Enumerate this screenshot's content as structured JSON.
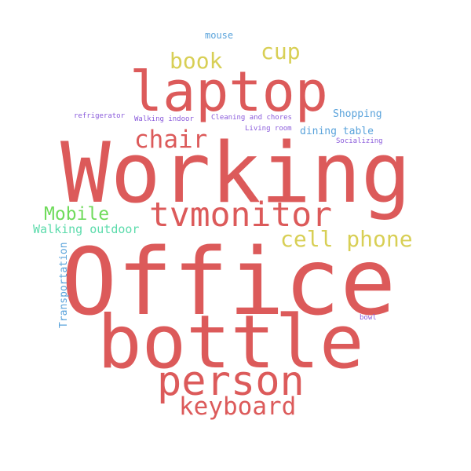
{
  "colors": {
    "red": "#dc5a5a",
    "yellow": "#d8cf55",
    "green": "#6fdb5b",
    "teal": "#5bdbab",
    "blue": "#5aa3db",
    "purple": "#8a5bdb",
    "background": "#ffffff"
  },
  "words": {
    "office": "Office",
    "working": "Working",
    "bottle": "bottle",
    "laptop": "laptop",
    "person": "person",
    "tvmonitor": "tvmonitor",
    "keyboard": "keyboard",
    "chair": "chair",
    "cell_phone": "cell phone",
    "book": "book",
    "cup": "cup",
    "mobile": "Mobile",
    "walking_outdoor": "Walking outdoor",
    "transportation": "Transportation",
    "mouse": "mouse",
    "shopping": "Shopping",
    "dining_table": "dining table",
    "refrigerator": "refrigerator",
    "walking_indoor": "Walking indoor",
    "cleaning_and_chores": "Cleaning and chores",
    "living_room": "Living room",
    "socializing": "Socializing",
    "bowl": "bowl"
  }
}
